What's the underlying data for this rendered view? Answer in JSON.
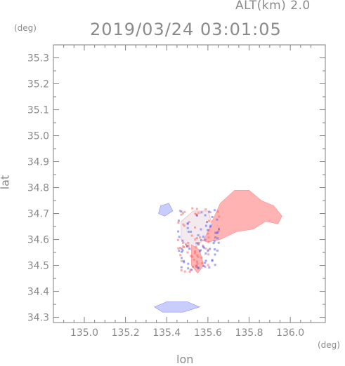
{
  "header": {
    "altitude_label": "ALT(km) 2.0",
    "datetime": "2019/03/24 03:01:05"
  },
  "axes": {
    "x_title": "lon",
    "y_title": "lat",
    "x_unit": "(deg)",
    "y_unit": "(deg)",
    "x_range": [
      134.85,
      136.17
    ],
    "y_range": [
      34.28,
      35.35
    ],
    "x_ticks": [
      "135.0",
      "135.2",
      "135.4",
      "135.6",
      "135.8",
      "136.0"
    ],
    "y_ticks": [
      "35.3",
      "35.2",
      "35.1",
      "35.0",
      "34.9",
      "34.8",
      "34.7",
      "34.6",
      "34.5",
      "34.4",
      "34.3"
    ]
  },
  "colors": {
    "frame": "#808080",
    "positive": "#ffb3b3",
    "positive_strong": "#ff6666",
    "negative": "#c9cdfb",
    "negative_strong": "#5a64e6",
    "neutral": "#f3eaf0"
  },
  "echo_regions": [
    {
      "name": "main-positive-echo",
      "sign": "positive",
      "points": [
        [
          135.53,
          34.62
        ],
        [
          135.62,
          34.67
        ],
        [
          135.66,
          34.74
        ],
        [
          135.73,
          34.79
        ],
        [
          135.8,
          34.79
        ],
        [
          135.86,
          34.75
        ],
        [
          135.92,
          34.73
        ],
        [
          135.96,
          34.69
        ],
        [
          135.94,
          34.66
        ],
        [
          135.88,
          34.67
        ],
        [
          135.82,
          34.64
        ],
        [
          135.74,
          34.63
        ],
        [
          135.66,
          34.6
        ],
        [
          135.6,
          34.59
        ],
        [
          135.55,
          34.6
        ]
      ]
    },
    {
      "name": "central-mixed-echo",
      "sign": "neutral",
      "points": [
        [
          135.47,
          34.67
        ],
        [
          135.53,
          34.71
        ],
        [
          135.6,
          34.71
        ],
        [
          135.62,
          34.66
        ],
        [
          135.58,
          34.6
        ],
        [
          135.52,
          34.56
        ],
        [
          135.47,
          34.6
        ]
      ]
    },
    {
      "name": "west-negative-echo",
      "sign": "negative",
      "points": [
        [
          135.37,
          34.73
        ],
        [
          135.41,
          34.74
        ],
        [
          135.43,
          34.71
        ],
        [
          135.39,
          34.69
        ],
        [
          135.36,
          34.7
        ]
      ]
    },
    {
      "name": "southern-negative-band",
      "sign": "negative",
      "points": [
        [
          135.34,
          34.34
        ],
        [
          135.4,
          34.36
        ],
        [
          135.5,
          34.36
        ],
        [
          135.56,
          34.34
        ],
        [
          135.48,
          34.32
        ],
        [
          135.38,
          34.32
        ]
      ]
    },
    {
      "name": "bay-mixed-echo",
      "sign": "positive",
      "points": [
        [
          135.52,
          34.58
        ],
        [
          135.56,
          34.56
        ],
        [
          135.58,
          34.5
        ],
        [
          135.55,
          34.47
        ],
        [
          135.52,
          34.5
        ]
      ]
    }
  ]
}
